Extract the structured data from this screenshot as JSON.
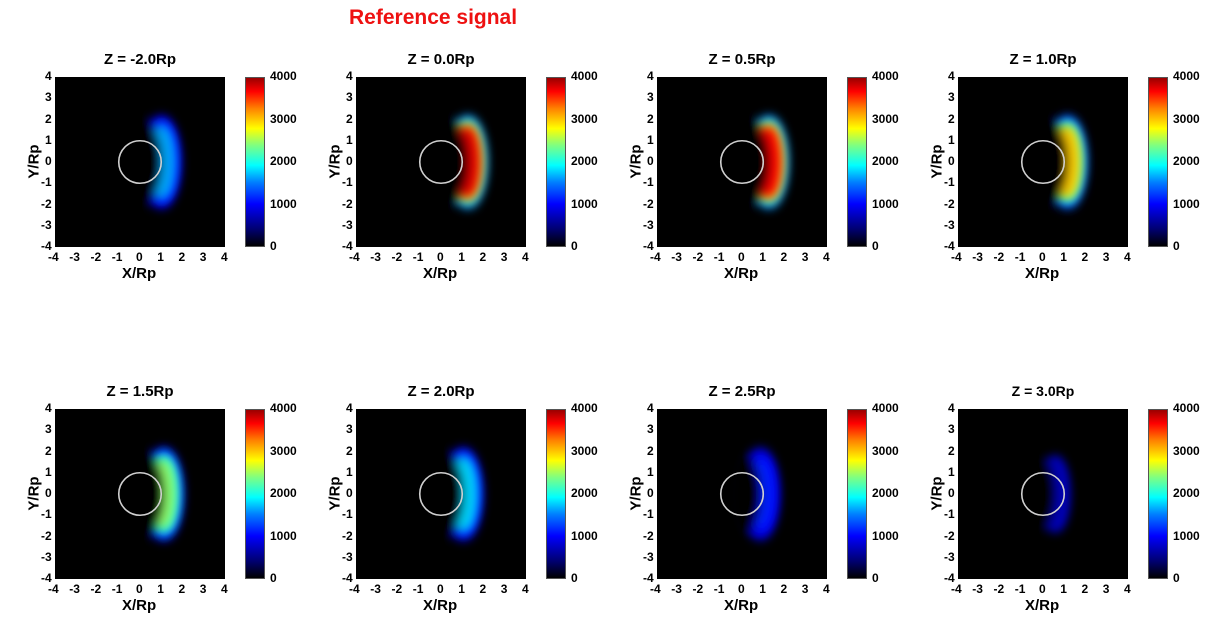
{
  "title": "Reference signal",
  "chart_data": [
    {
      "type": "heatmap",
      "title": "Z = -2.0Rp",
      "xlabel": "X/Rp",
      "ylabel": "Y/Rp",
      "xlim": [
        -4,
        4
      ],
      "ylim": [
        -4,
        4
      ],
      "clim": [
        0,
        4000
      ],
      "colorbar_ticks": [
        "4000",
        "3000",
        "2000",
        "1000",
        "0"
      ],
      "axis_ticks": [
        "-4",
        "-3",
        "-2",
        "-1",
        "0",
        "1",
        "2",
        "3",
        "4"
      ],
      "peak_value": 1300,
      "arc_center_x": 1.4,
      "planet_radius": 1.0,
      "colormap": "jet"
    },
    {
      "type": "heatmap",
      "title": "Z = 0.0Rp",
      "xlabel": "X/Rp",
      "ylabel": "Y/Rp",
      "xlim": [
        -4,
        4
      ],
      "ylim": [
        -4,
        4
      ],
      "clim": [
        0,
        4000
      ],
      "colorbar_ticks": [
        "4000",
        "3000",
        "2000",
        "1000",
        "0"
      ],
      "axis_ticks": [
        "-4",
        "-3",
        "-2",
        "-1",
        "0",
        "1",
        "2",
        "3",
        "4"
      ],
      "peak_value": 4000,
      "arc_center_x": 1.75,
      "planet_radius": 1.0,
      "colormap": "jet"
    },
    {
      "type": "heatmap",
      "title": "Z = 0.5Rp",
      "xlabel": "X/Rp",
      "ylabel": "Y/Rp",
      "xlim": [
        -4,
        4
      ],
      "ylim": [
        -4,
        4
      ],
      "clim": [
        0,
        4000
      ],
      "colorbar_ticks": [
        "4000",
        "3000",
        "2000",
        "1000",
        "0"
      ],
      "axis_ticks": [
        "-4",
        "-3",
        "-2",
        "-1",
        "0",
        "1",
        "2",
        "3",
        "4"
      ],
      "peak_value": 3900,
      "arc_center_x": 1.75,
      "planet_radius": 1.0,
      "colormap": "jet"
    },
    {
      "type": "heatmap",
      "title": "Z = 1.0Rp",
      "xlabel": "X/Rp",
      "ylabel": "Y/Rp",
      "xlim": [
        -4,
        4
      ],
      "ylim": [
        -4,
        4
      ],
      "clim": [
        0,
        4000
      ],
      "colorbar_ticks": [
        "4000",
        "3000",
        "2000",
        "1000",
        "0"
      ],
      "axis_ticks": [
        "-4",
        "-3",
        "-2",
        "-1",
        "0",
        "1",
        "2",
        "3",
        "4"
      ],
      "peak_value": 3000,
      "arc_center_x": 1.6,
      "planet_radius": 1.0,
      "colormap": "jet"
    },
    {
      "type": "heatmap",
      "title": "Z = 1.5Rp",
      "xlabel": "X/Rp",
      "ylabel": "Y/Rp",
      "xlim": [
        -4,
        4
      ],
      "ylim": [
        -4,
        4
      ],
      "clim": [
        0,
        4000
      ],
      "colorbar_ticks": [
        "4000",
        "3000",
        "2000",
        "1000",
        "0"
      ],
      "axis_ticks": [
        "-4",
        "-3",
        "-2",
        "-1",
        "0",
        "1",
        "2",
        "3",
        "4"
      ],
      "peak_value": 2300,
      "arc_center_x": 1.55,
      "planet_radius": 1.0,
      "colormap": "jet"
    },
    {
      "type": "heatmap",
      "title": "Z = 2.0Rp",
      "xlabel": "X/Rp",
      "ylabel": "Y/Rp",
      "xlim": [
        -4,
        4
      ],
      "ylim": [
        -4,
        4
      ],
      "clim": [
        0,
        4000
      ],
      "colorbar_ticks": [
        "4000",
        "3000",
        "2000",
        "1000",
        "0"
      ],
      "axis_ticks": [
        "-4",
        "-3",
        "-2",
        "-1",
        "0",
        "1",
        "2",
        "3",
        "4"
      ],
      "peak_value": 1500,
      "arc_center_x": 1.45,
      "planet_radius": 1.0,
      "colormap": "jet"
    },
    {
      "type": "heatmap",
      "title": "Z = 2.5Rp",
      "xlabel": "X/Rp",
      "ylabel": "Y/Rp",
      "xlim": [
        -4,
        4
      ],
      "ylim": [
        -4,
        4
      ],
      "clim": [
        0,
        4000
      ],
      "colorbar_ticks": [
        "4000",
        "3000",
        "2000",
        "1000",
        "0"
      ],
      "axis_ticks": [
        "-4",
        "-3",
        "-2",
        "-1",
        "0",
        "1",
        "2",
        "3",
        "4"
      ],
      "peak_value": 700,
      "arc_center_x": 1.2,
      "planet_radius": 1.0,
      "colormap": "jet"
    },
    {
      "type": "heatmap",
      "title": "Z = 3.0Rp",
      "xlabel": "X/Rp",
      "ylabel": "Y/Rp",
      "xlim": [
        -4,
        4
      ],
      "ylim": [
        -4,
        4
      ],
      "clim": [
        0,
        4000
      ],
      "colorbar_ticks": [
        "4000",
        "3000",
        "2000",
        "1000",
        "0"
      ],
      "axis_ticks": [
        "-4",
        "-3",
        "-2",
        "-1",
        "0",
        "1",
        "2",
        "3",
        "4"
      ],
      "peak_value": 250,
      "arc_center_x": 0.8,
      "planet_radius": 1.0,
      "colormap": "jet"
    }
  ]
}
